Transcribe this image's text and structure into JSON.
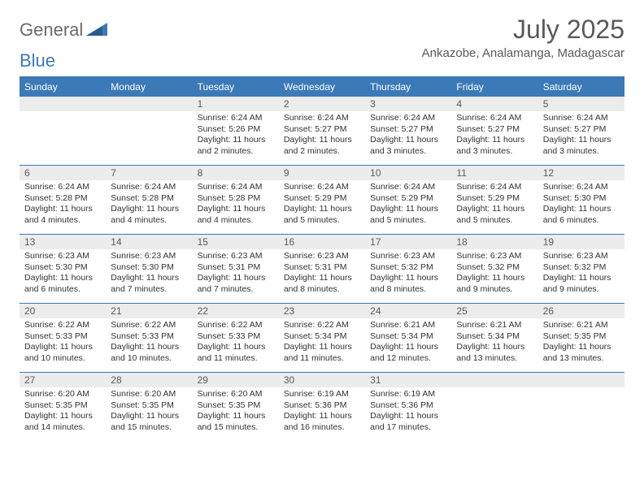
{
  "logo": {
    "part1": "General",
    "part2": "Blue"
  },
  "title": "July 2025",
  "location": "Ankazobe, Analamanga, Madagascar",
  "colors": {
    "accent": "#3b79b7",
    "header_text": "#6a6a6a",
    "daynum_bg": "#ececec",
    "body_text": "#333333"
  },
  "day_headers": [
    "Sunday",
    "Monday",
    "Tuesday",
    "Wednesday",
    "Thursday",
    "Friday",
    "Saturday"
  ],
  "weeks": [
    [
      null,
      null,
      {
        "n": "1",
        "sr": "Sunrise: 6:24 AM",
        "ss": "Sunset: 5:26 PM",
        "dl": "Daylight: 11 hours and 2 minutes."
      },
      {
        "n": "2",
        "sr": "Sunrise: 6:24 AM",
        "ss": "Sunset: 5:27 PM",
        "dl": "Daylight: 11 hours and 2 minutes."
      },
      {
        "n": "3",
        "sr": "Sunrise: 6:24 AM",
        "ss": "Sunset: 5:27 PM",
        "dl": "Daylight: 11 hours and 3 minutes."
      },
      {
        "n": "4",
        "sr": "Sunrise: 6:24 AM",
        "ss": "Sunset: 5:27 PM",
        "dl": "Daylight: 11 hours and 3 minutes."
      },
      {
        "n": "5",
        "sr": "Sunrise: 6:24 AM",
        "ss": "Sunset: 5:27 PM",
        "dl": "Daylight: 11 hours and 3 minutes."
      }
    ],
    [
      {
        "n": "6",
        "sr": "Sunrise: 6:24 AM",
        "ss": "Sunset: 5:28 PM",
        "dl": "Daylight: 11 hours and 4 minutes."
      },
      {
        "n": "7",
        "sr": "Sunrise: 6:24 AM",
        "ss": "Sunset: 5:28 PM",
        "dl": "Daylight: 11 hours and 4 minutes."
      },
      {
        "n": "8",
        "sr": "Sunrise: 6:24 AM",
        "ss": "Sunset: 5:28 PM",
        "dl": "Daylight: 11 hours and 4 minutes."
      },
      {
        "n": "9",
        "sr": "Sunrise: 6:24 AM",
        "ss": "Sunset: 5:29 PM",
        "dl": "Daylight: 11 hours and 5 minutes."
      },
      {
        "n": "10",
        "sr": "Sunrise: 6:24 AM",
        "ss": "Sunset: 5:29 PM",
        "dl": "Daylight: 11 hours and 5 minutes."
      },
      {
        "n": "11",
        "sr": "Sunrise: 6:24 AM",
        "ss": "Sunset: 5:29 PM",
        "dl": "Daylight: 11 hours and 5 minutes."
      },
      {
        "n": "12",
        "sr": "Sunrise: 6:24 AM",
        "ss": "Sunset: 5:30 PM",
        "dl": "Daylight: 11 hours and 6 minutes."
      }
    ],
    [
      {
        "n": "13",
        "sr": "Sunrise: 6:23 AM",
        "ss": "Sunset: 5:30 PM",
        "dl": "Daylight: 11 hours and 6 minutes."
      },
      {
        "n": "14",
        "sr": "Sunrise: 6:23 AM",
        "ss": "Sunset: 5:30 PM",
        "dl": "Daylight: 11 hours and 7 minutes."
      },
      {
        "n": "15",
        "sr": "Sunrise: 6:23 AM",
        "ss": "Sunset: 5:31 PM",
        "dl": "Daylight: 11 hours and 7 minutes."
      },
      {
        "n": "16",
        "sr": "Sunrise: 6:23 AM",
        "ss": "Sunset: 5:31 PM",
        "dl": "Daylight: 11 hours and 8 minutes."
      },
      {
        "n": "17",
        "sr": "Sunrise: 6:23 AM",
        "ss": "Sunset: 5:32 PM",
        "dl": "Daylight: 11 hours and 8 minutes."
      },
      {
        "n": "18",
        "sr": "Sunrise: 6:23 AM",
        "ss": "Sunset: 5:32 PM",
        "dl": "Daylight: 11 hours and 9 minutes."
      },
      {
        "n": "19",
        "sr": "Sunrise: 6:23 AM",
        "ss": "Sunset: 5:32 PM",
        "dl": "Daylight: 11 hours and 9 minutes."
      }
    ],
    [
      {
        "n": "20",
        "sr": "Sunrise: 6:22 AM",
        "ss": "Sunset: 5:33 PM",
        "dl": "Daylight: 11 hours and 10 minutes."
      },
      {
        "n": "21",
        "sr": "Sunrise: 6:22 AM",
        "ss": "Sunset: 5:33 PM",
        "dl": "Daylight: 11 hours and 10 minutes."
      },
      {
        "n": "22",
        "sr": "Sunrise: 6:22 AM",
        "ss": "Sunset: 5:33 PM",
        "dl": "Daylight: 11 hours and 11 minutes."
      },
      {
        "n": "23",
        "sr": "Sunrise: 6:22 AM",
        "ss": "Sunset: 5:34 PM",
        "dl": "Daylight: 11 hours and 11 minutes."
      },
      {
        "n": "24",
        "sr": "Sunrise: 6:21 AM",
        "ss": "Sunset: 5:34 PM",
        "dl": "Daylight: 11 hours and 12 minutes."
      },
      {
        "n": "25",
        "sr": "Sunrise: 6:21 AM",
        "ss": "Sunset: 5:34 PM",
        "dl": "Daylight: 11 hours and 13 minutes."
      },
      {
        "n": "26",
        "sr": "Sunrise: 6:21 AM",
        "ss": "Sunset: 5:35 PM",
        "dl": "Daylight: 11 hours and 13 minutes."
      }
    ],
    [
      {
        "n": "27",
        "sr": "Sunrise: 6:20 AM",
        "ss": "Sunset: 5:35 PM",
        "dl": "Daylight: 11 hours and 14 minutes."
      },
      {
        "n": "28",
        "sr": "Sunrise: 6:20 AM",
        "ss": "Sunset: 5:35 PM",
        "dl": "Daylight: 11 hours and 15 minutes."
      },
      {
        "n": "29",
        "sr": "Sunrise: 6:20 AM",
        "ss": "Sunset: 5:35 PM",
        "dl": "Daylight: 11 hours and 15 minutes."
      },
      {
        "n": "30",
        "sr": "Sunrise: 6:19 AM",
        "ss": "Sunset: 5:36 PM",
        "dl": "Daylight: 11 hours and 16 minutes."
      },
      {
        "n": "31",
        "sr": "Sunrise: 6:19 AM",
        "ss": "Sunset: 5:36 PM",
        "dl": "Daylight: 11 hours and 17 minutes."
      },
      null,
      null
    ]
  ]
}
